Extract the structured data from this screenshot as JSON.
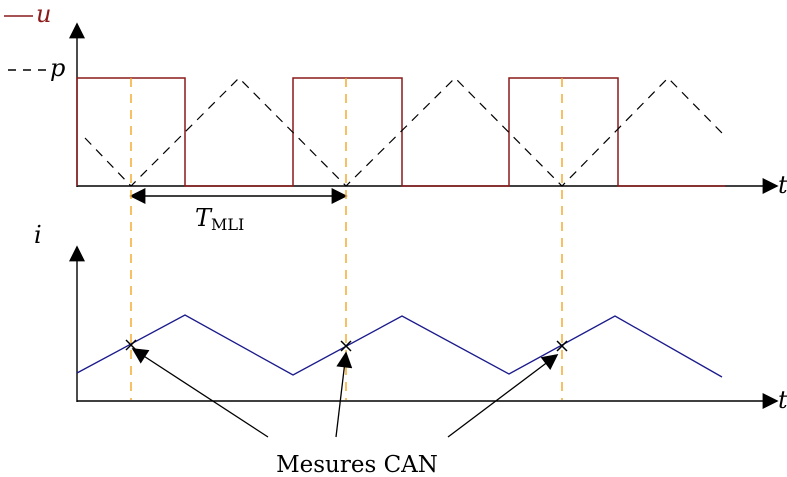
{
  "diagram": {
    "legend": {
      "u_label": "u",
      "p_label": "p",
      "u_color": "#8b1a1a",
      "p_color": "#000000"
    },
    "top_plot": {
      "time_axis_label": "t",
      "period_label_main": "T",
      "period_label_sub": "MLI"
    },
    "bottom_plot": {
      "y_axis_label": "i",
      "time_axis_label": "t",
      "current_color": "#1a1a8c"
    },
    "sampling": {
      "marker_color": "#f5a623",
      "annotation": "Mesures CAN"
    }
  }
}
